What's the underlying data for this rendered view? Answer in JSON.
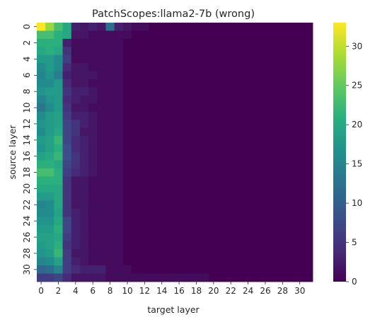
{
  "chart_data": {
    "type": "heatmap",
    "title": "PatchScopes:llama2-7b (wrong)",
    "xlabel": "target layer",
    "ylabel": "source layer",
    "x_ticks": [
      "0",
      "2",
      "4",
      "6",
      "8",
      "10",
      "12",
      "14",
      "16",
      "18",
      "20",
      "22",
      "24",
      "26",
      "28",
      "30"
    ],
    "y_ticks": [
      "0",
      "2",
      "4",
      "6",
      "8",
      "10",
      "12",
      "14",
      "16",
      "18",
      "20",
      "22",
      "24",
      "26",
      "28",
      "30"
    ],
    "colorbar": {
      "ticks": [
        "0",
        "5",
        "10",
        "15",
        "20",
        "25",
        "30"
      ],
      "range": [
        0,
        33
      ],
      "colormap": "viridis"
    },
    "rows": 32,
    "cols": 32,
    "values": [
      [
        33,
        28,
        23,
        20,
        3,
        2,
        3,
        2,
        12,
        3,
        2,
        1,
        1,
        0,
        0,
        0,
        0,
        0,
        0,
        0,
        0,
        0,
        0,
        0,
        0,
        0,
        0,
        0,
        0,
        0,
        0,
        0
      ],
      [
        23,
        23,
        21,
        20,
        2,
        2,
        1,
        1,
        1,
        1,
        1,
        0,
        0,
        0,
        0,
        0,
        0,
        0,
        0,
        0,
        0,
        0,
        0,
        0,
        0,
        0,
        0,
        0,
        0,
        0,
        0,
        0
      ],
      [
        21,
        21,
        21,
        3,
        1,
        1,
        1,
        1,
        1,
        1,
        0,
        0,
        0,
        0,
        0,
        0,
        0,
        0,
        0,
        0,
        0,
        0,
        0,
        0,
        0,
        0,
        0,
        0,
        0,
        0,
        0,
        0
      ],
      [
        20,
        21,
        20,
        5,
        1,
        1,
        1,
        1,
        1,
        1,
        0,
        0,
        0,
        0,
        0,
        0,
        0,
        0,
        0,
        0,
        0,
        0,
        0,
        0,
        0,
        0,
        0,
        0,
        0,
        0,
        0,
        0
      ],
      [
        18,
        18,
        16,
        6,
        1,
        1,
        1,
        1,
        1,
        1,
        0,
        0,
        0,
        0,
        0,
        0,
        0,
        0,
        0,
        0,
        0,
        0,
        0,
        0,
        0,
        0,
        0,
        0,
        0,
        0,
        0,
        0
      ],
      [
        16,
        18,
        16,
        4,
        2,
        2,
        1,
        1,
        1,
        1,
        0,
        0,
        0,
        0,
        0,
        0,
        0,
        0,
        0,
        0,
        0,
        0,
        0,
        0,
        0,
        0,
        0,
        0,
        0,
        0,
        0,
        0
      ],
      [
        15,
        17,
        14,
        3,
        2,
        2,
        2,
        1,
        1,
        1,
        0,
        0,
        0,
        0,
        0,
        0,
        0,
        0,
        0,
        0,
        0,
        0,
        0,
        0,
        0,
        0,
        0,
        0,
        0,
        0,
        0,
        0
      ],
      [
        16,
        16,
        18,
        4,
        2,
        2,
        1,
        1,
        1,
        1,
        0,
        0,
        0,
        0,
        0,
        0,
        0,
        0,
        0,
        0,
        0,
        0,
        0,
        0,
        0,
        0,
        0,
        0,
        0,
        0,
        0,
        0
      ],
      [
        17,
        18,
        18,
        5,
        3,
        3,
        2,
        1,
        1,
        1,
        0,
        0,
        0,
        0,
        0,
        0,
        0,
        0,
        0,
        0,
        0,
        0,
        0,
        0,
        0,
        0,
        0,
        0,
        0,
        0,
        0,
        0
      ],
      [
        15,
        17,
        18,
        4,
        3,
        2,
        2,
        1,
        1,
        1,
        0,
        0,
        0,
        0,
        0,
        0,
        0,
        0,
        0,
        0,
        0,
        0,
        0,
        0,
        0,
        0,
        0,
        0,
        0,
        0,
        0,
        0
      ],
      [
        13,
        16,
        18,
        5,
        2,
        2,
        1,
        1,
        1,
        1,
        0,
        0,
        0,
        0,
        0,
        0,
        0,
        0,
        0,
        0,
        0,
        0,
        0,
        0,
        0,
        0,
        0,
        0,
        0,
        0,
        0,
        0
      ],
      [
        16,
        18,
        19,
        6,
        3,
        3,
        2,
        1,
        1,
        1,
        0,
        0,
        0,
        0,
        0,
        0,
        0,
        0,
        0,
        0,
        0,
        0,
        0,
        0,
        0,
        0,
        0,
        0,
        0,
        0,
        0,
        0
      ],
      [
        17,
        18,
        19,
        7,
        5,
        3,
        2,
        1,
        1,
        1,
        0,
        0,
        0,
        0,
        0,
        0,
        0,
        0,
        0,
        0,
        0,
        0,
        0,
        0,
        0,
        0,
        0,
        0,
        0,
        0,
        0,
        0
      ],
      [
        16,
        18,
        20,
        7,
        5,
        2,
        2,
        1,
        1,
        1,
        0,
        0,
        0,
        0,
        0,
        0,
        0,
        0,
        0,
        0,
        0,
        0,
        0,
        0,
        0,
        0,
        0,
        0,
        0,
        0,
        0,
        0
      ],
      [
        18,
        19,
        22,
        7,
        4,
        3,
        2,
        1,
        1,
        1,
        0,
        0,
        0,
        0,
        0,
        0,
        0,
        0,
        0,
        0,
        0,
        0,
        0,
        0,
        0,
        0,
        0,
        0,
        0,
        0,
        0,
        0
      ],
      [
        17,
        19,
        21,
        8,
        4,
        3,
        2,
        1,
        1,
        1,
        0,
        0,
        0,
        0,
        0,
        0,
        0,
        0,
        0,
        0,
        0,
        0,
        0,
        0,
        0,
        0,
        0,
        0,
        0,
        0,
        0,
        0
      ],
      [
        19,
        20,
        22,
        8,
        5,
        3,
        2,
        1,
        1,
        1,
        0,
        0,
        0,
        0,
        0,
        0,
        0,
        0,
        0,
        0,
        0,
        0,
        0,
        0,
        0,
        0,
        0,
        0,
        0,
        0,
        0,
        0
      ],
      [
        21,
        21,
        20,
        7,
        5,
        3,
        2,
        1,
        1,
        1,
        0,
        0,
        0,
        0,
        0,
        0,
        0,
        0,
        0,
        0,
        0,
        0,
        0,
        0,
        0,
        0,
        0,
        0,
        0,
        0,
        0,
        0
      ],
      [
        23,
        23,
        21,
        6,
        4,
        3,
        2,
        1,
        1,
        1,
        0,
        0,
        0,
        0,
        0,
        0,
        0,
        0,
        0,
        0,
        0,
        0,
        0,
        0,
        0,
        0,
        0,
        0,
        0,
        0,
        0,
        0
      ],
      [
        21,
        21,
        21,
        5,
        2,
        2,
        1,
        1,
        1,
        1,
        0,
        0,
        0,
        0,
        0,
        0,
        0,
        0,
        0,
        0,
        0,
        0,
        0,
        0,
        0,
        0,
        0,
        0,
        0,
        0,
        0,
        0
      ],
      [
        20,
        20,
        20,
        5,
        2,
        2,
        1,
        1,
        1,
        1,
        0,
        0,
        0,
        0,
        0,
        0,
        0,
        0,
        0,
        0,
        0,
        0,
        0,
        0,
        0,
        0,
        0,
        0,
        0,
        0,
        0,
        0
      ],
      [
        18,
        18,
        20,
        5,
        2,
        2,
        1,
        1,
        1,
        1,
        0,
        0,
        0,
        0,
        0,
        0,
        0,
        0,
        0,
        0,
        0,
        0,
        0,
        0,
        0,
        0,
        0,
        0,
        0,
        0,
        0,
        0
      ],
      [
        15,
        16,
        20,
        5,
        2,
        2,
        1,
        1,
        1,
        1,
        0,
        0,
        0,
        0,
        0,
        0,
        0,
        0,
        0,
        0,
        0,
        0,
        0,
        0,
        0,
        0,
        0,
        0,
        0,
        0,
        0,
        0
      ],
      [
        16,
        16,
        19,
        5,
        3,
        2,
        1,
        1,
        1,
        1,
        0,
        0,
        0,
        0,
        0,
        0,
        0,
        0,
        0,
        0,
        0,
        0,
        0,
        0,
        0,
        0,
        0,
        0,
        0,
        0,
        0,
        0
      ],
      [
        17,
        17,
        20,
        7,
        3,
        2,
        1,
        1,
        1,
        1,
        0,
        0,
        0,
        0,
        0,
        0,
        0,
        0,
        0,
        0,
        0,
        0,
        0,
        0,
        0,
        0,
        0,
        0,
        0,
        0,
        0,
        0
      ],
      [
        18,
        18,
        21,
        7,
        3,
        2,
        1,
        1,
        1,
        1,
        0,
        0,
        0,
        0,
        0,
        0,
        0,
        0,
        0,
        0,
        0,
        0,
        0,
        0,
        0,
        0,
        0,
        0,
        0,
        0,
        0,
        0
      ],
      [
        19,
        19,
        20,
        6,
        3,
        2,
        1,
        1,
        1,
        1,
        0,
        0,
        0,
        0,
        0,
        0,
        0,
        0,
        0,
        0,
        0,
        0,
        0,
        0,
        0,
        0,
        0,
        0,
        0,
        0,
        0,
        0
      ],
      [
        18,
        19,
        21,
        5,
        3,
        2,
        1,
        1,
        1,
        1,
        0,
        0,
        0,
        0,
        0,
        0,
        0,
        0,
        0,
        0,
        0,
        0,
        0,
        0,
        0,
        0,
        0,
        0,
        0,
        0,
        0,
        0
      ],
      [
        17,
        18,
        22,
        6,
        2,
        2,
        1,
        1,
        1,
        1,
        0,
        0,
        0,
        0,
        0,
        0,
        0,
        0,
        0,
        0,
        0,
        0,
        0,
        0,
        0,
        0,
        0,
        0,
        0,
        0,
        0,
        0
      ],
      [
        15,
        16,
        19,
        6,
        3,
        2,
        1,
        1,
        1,
        1,
        0,
        0,
        0,
        0,
        0,
        0,
        0,
        0,
        0,
        0,
        0,
        0,
        0,
        0,
        0,
        0,
        0,
        0,
        0,
        0,
        0,
        0
      ],
      [
        11,
        12,
        15,
        6,
        4,
        3,
        3,
        3,
        1,
        1,
        1,
        0,
        0,
        0,
        0,
        0,
        0,
        0,
        0,
        0,
        0,
        0,
        0,
        0,
        0,
        0,
        0,
        0,
        0,
        0,
        0,
        0
      ],
      [
        6,
        6,
        7,
        4,
        2,
        2,
        2,
        2,
        1,
        1,
        1,
        1,
        1,
        1,
        1,
        1,
        1,
        1,
        1,
        1,
        0,
        0,
        0,
        0,
        0,
        0,
        0,
        0,
        0,
        0,
        0,
        0
      ]
    ]
  }
}
